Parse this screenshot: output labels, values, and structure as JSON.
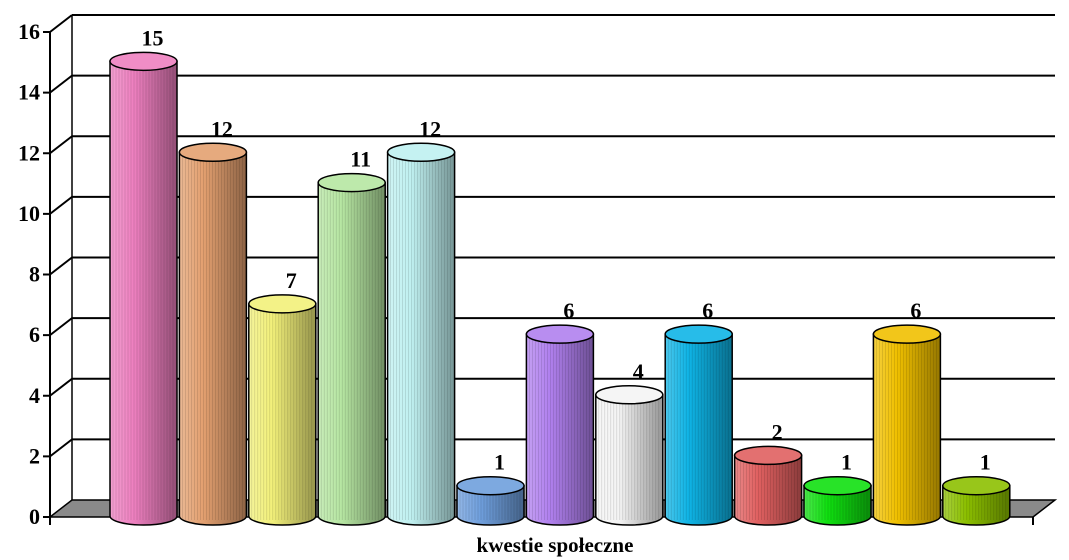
{
  "chart_data": {
    "type": "bar",
    "style": "3d-cylinder",
    "title": "",
    "xlabel": "kwestie społeczne",
    "ylabel": "",
    "ylim": [
      0,
      16
    ],
    "y_ticks": [
      "0",
      "2",
      "4",
      "6",
      "8",
      "10",
      "12",
      "14",
      "16"
    ],
    "grid": true,
    "legend": "none",
    "values": [
      15,
      12,
      7,
      11,
      12,
      1,
      6,
      4,
      6,
      2,
      1,
      6,
      1
    ],
    "data_labels": [
      "15",
      "12",
      "7",
      "11",
      "12",
      "1",
      "6",
      "4",
      "6",
      "2",
      "1",
      "6",
      "1"
    ],
    "colors": [
      "#ee80c0",
      "#e3a070",
      "#f2f07a",
      "#b6e6a2",
      "#bff0f0",
      "#6f9fdd",
      "#b080ee",
      "#f4f4f4",
      "#0fb4e6",
      "#e06060",
      "#10e010",
      "#f0c000",
      "#8cc000"
    ]
  }
}
